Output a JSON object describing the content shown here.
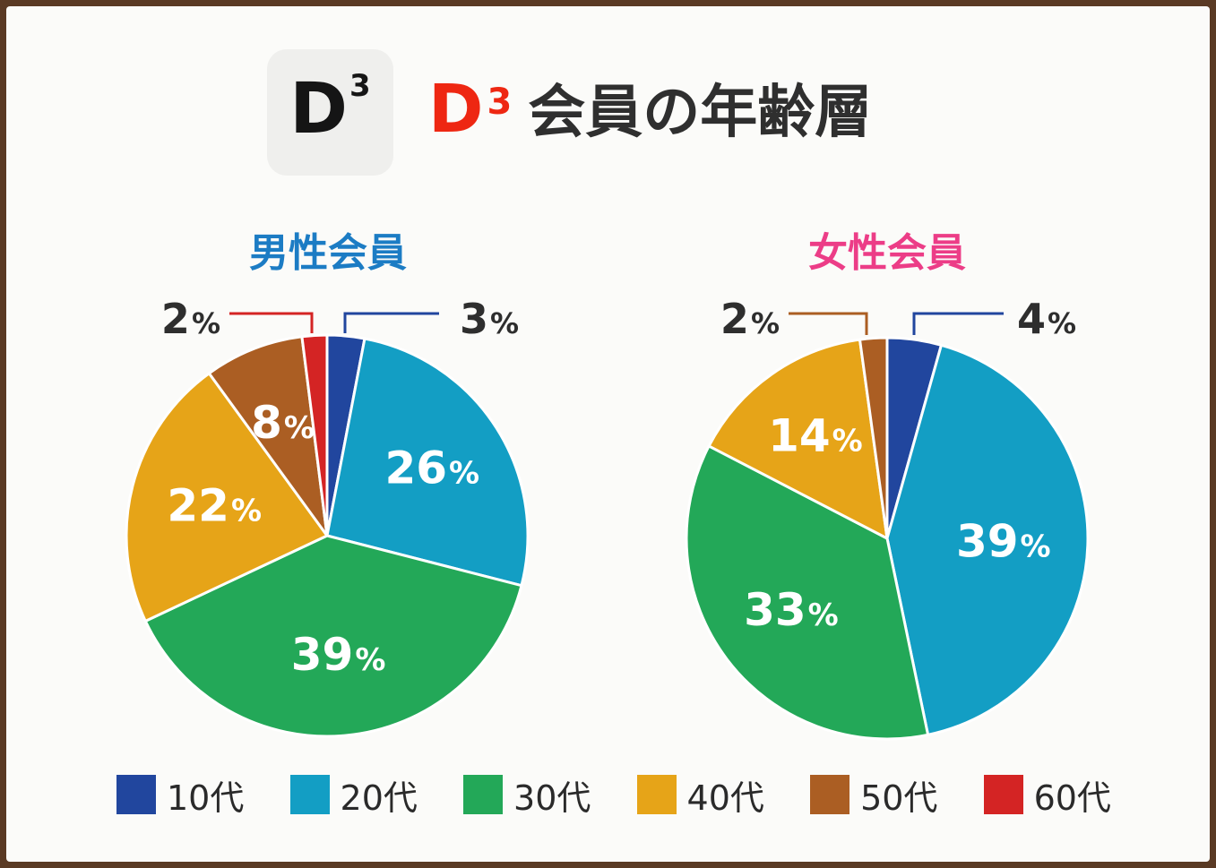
{
  "header": {
    "logo_text": "D",
    "logo_sup": "3",
    "title_brand": "D",
    "title_brand_sup": "3",
    "title_rest": "会員の年齢層"
  },
  "colors": {
    "10代": "#21469e",
    "20代": "#139ec4",
    "30代": "#23a858",
    "40代": "#e6a418",
    "50代": "#ab5e23",
    "60代": "#d42424",
    "male_title": "#1c7cc4",
    "female_title": "#ec3d87"
  },
  "legend": [
    "10代",
    "20代",
    "30代",
    "40代",
    "50代",
    "60代"
  ],
  "chart_data": [
    {
      "type": "pie",
      "title": "男性会員",
      "categories": [
        "10代",
        "20代",
        "30代",
        "40代",
        "50代",
        "60代"
      ],
      "values": [
        3,
        26,
        39,
        22,
        8,
        2
      ],
      "labels": [
        "3%",
        "26%",
        "39%",
        "22%",
        "8%",
        "2%"
      ]
    },
    {
      "type": "pie",
      "title": "女性会員",
      "categories": [
        "10代",
        "20代",
        "30代",
        "40代",
        "50代"
      ],
      "values": [
        4,
        39,
        33,
        14,
        2
      ],
      "labels": [
        "4%",
        "39%",
        "33%",
        "14%",
        "2%"
      ]
    }
  ]
}
